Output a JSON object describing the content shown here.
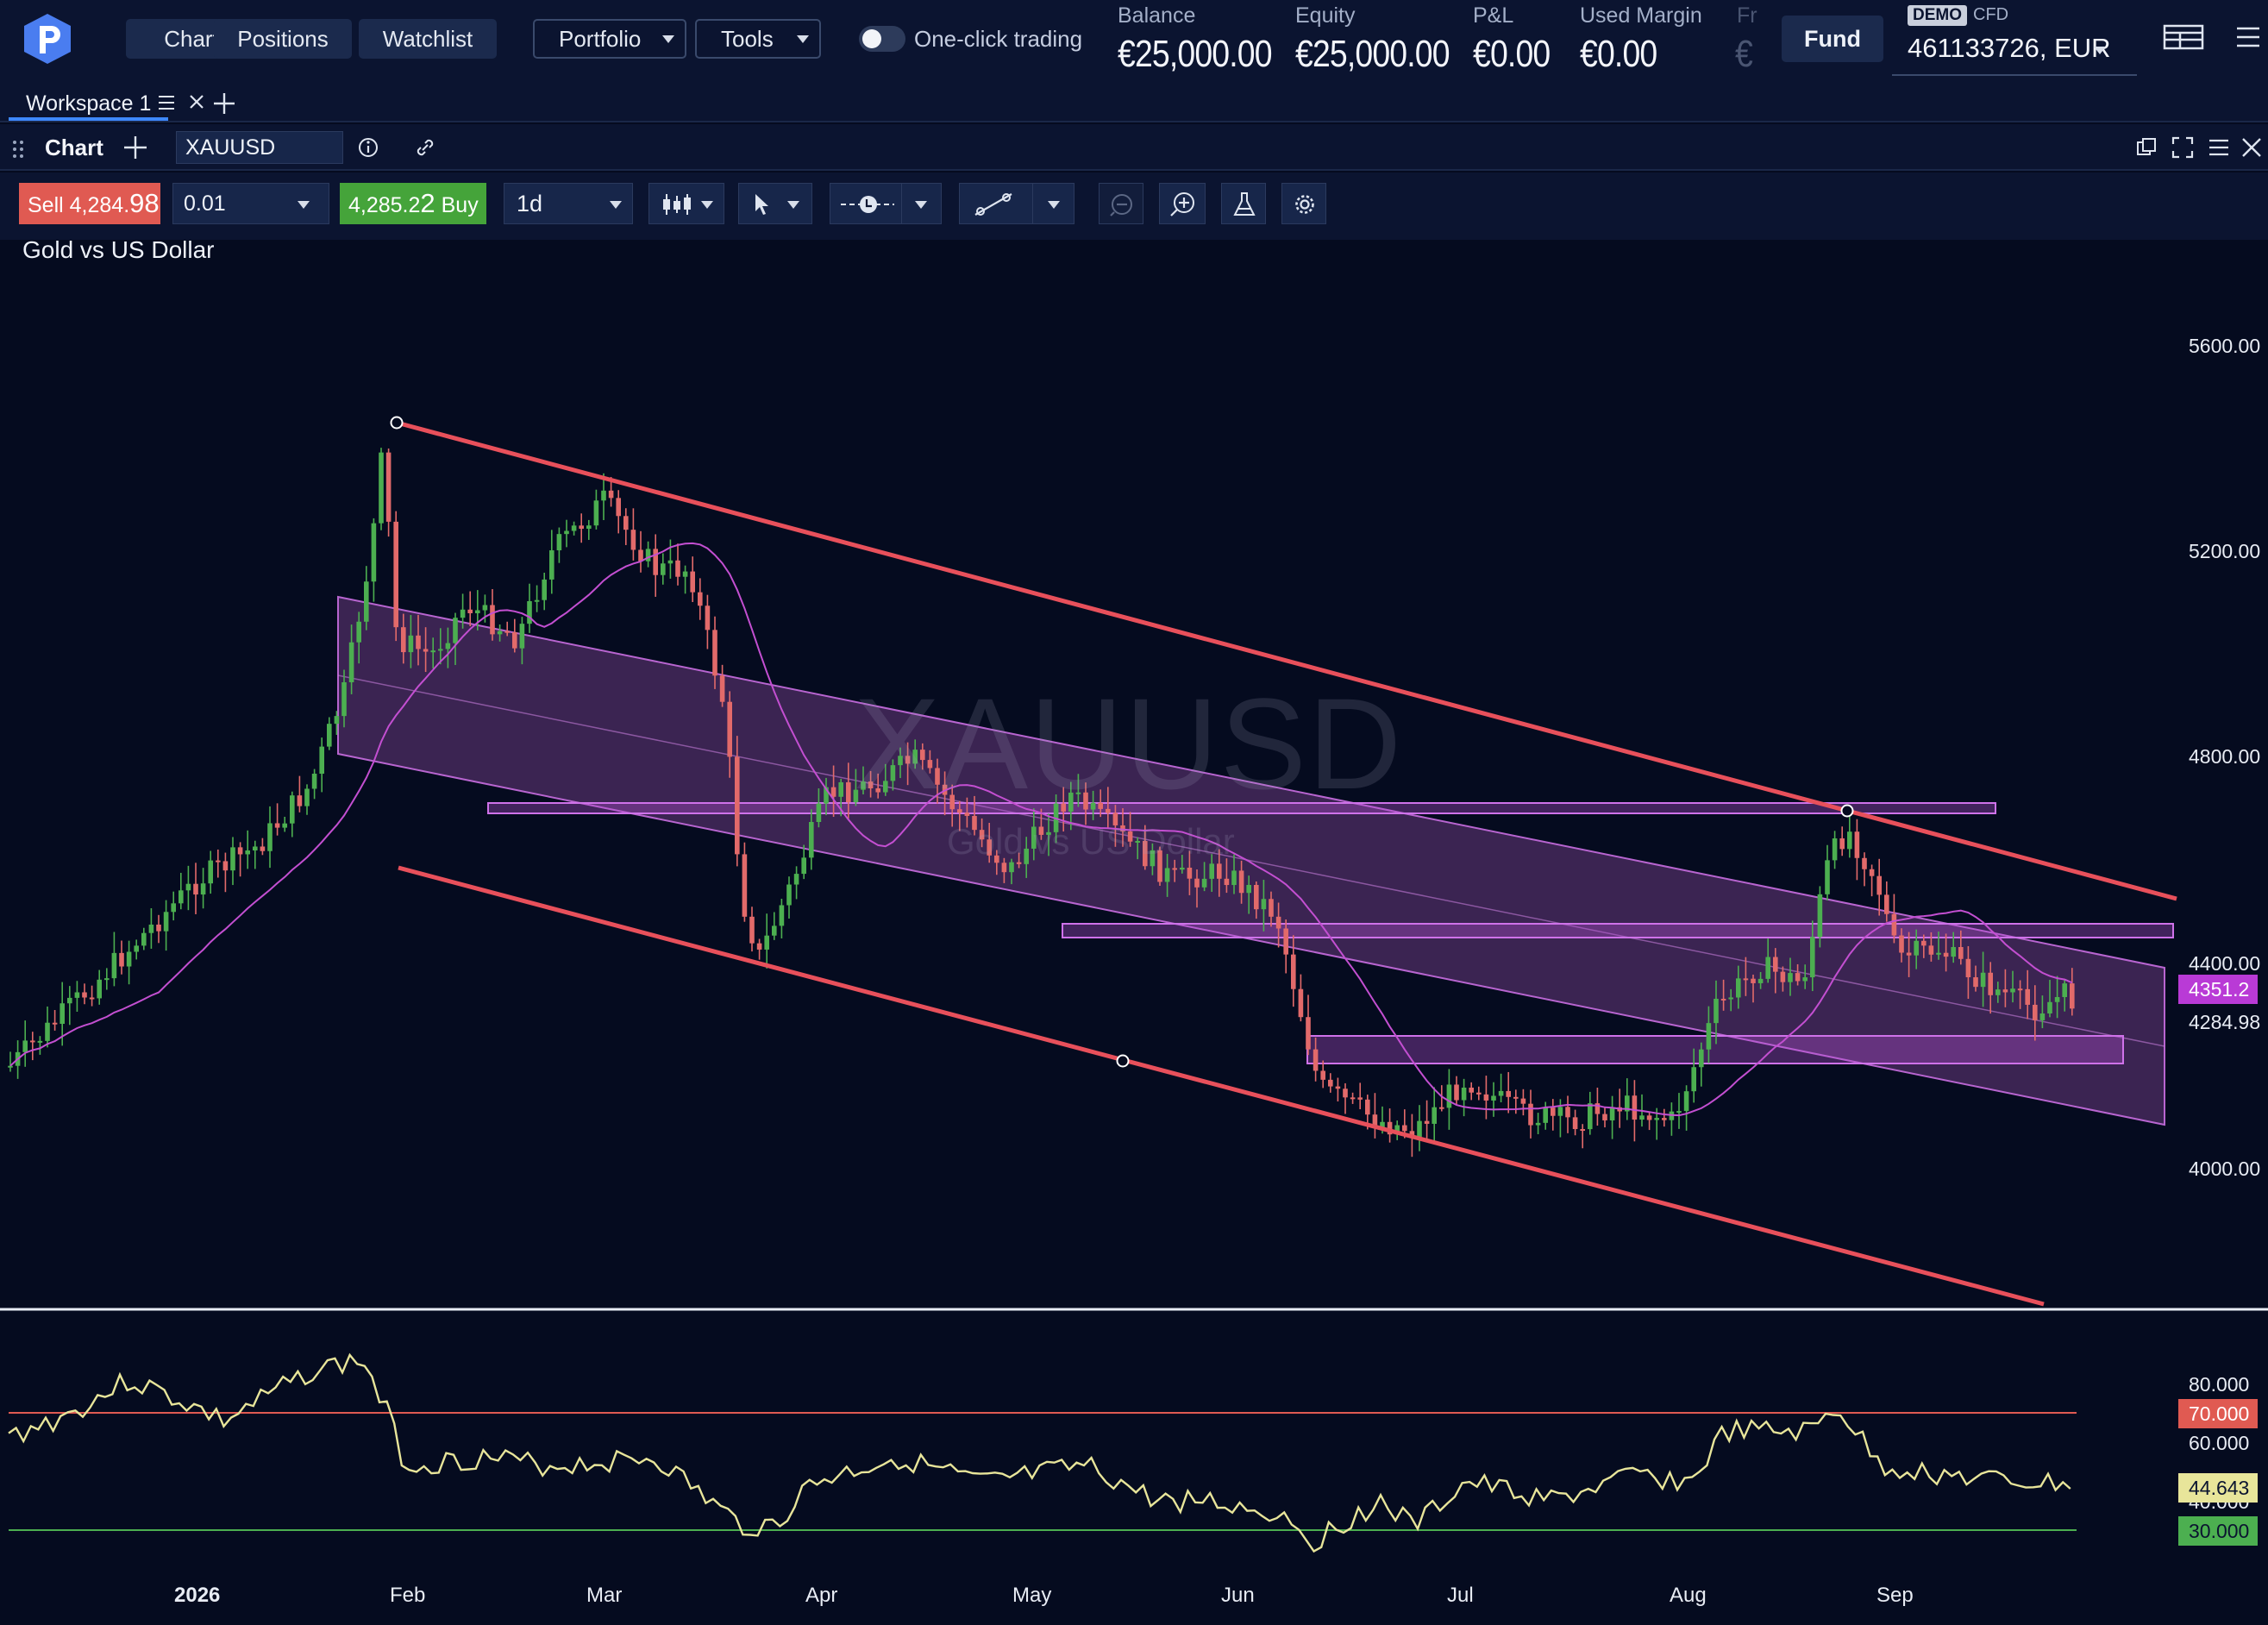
{
  "topbar": {
    "nav": [
      "Chart",
      "Positions",
      "Watchlist"
    ],
    "dropdowns": [
      "Portfolio",
      "Tools"
    ],
    "one_click_label": "One-click trading",
    "stats": [
      {
        "label": "Balance",
        "value": "€25,000.00"
      },
      {
        "label": "Equity",
        "value": "€25,000.00"
      },
      {
        "label": "P&L",
        "value": "€0.00"
      },
      {
        "label": "Used Margin",
        "value": "€0.00"
      },
      {
        "label": "Fr",
        "value": "€"
      }
    ],
    "fund_label": "Fund",
    "demo_badge": "DEMO",
    "cfd_label": "CFD",
    "account": "461133726, EUR"
  },
  "workspace": {
    "tab_label": "Workspace 1"
  },
  "panel": {
    "title": "Chart",
    "symbol": "XAUUSD"
  },
  "toolbar": {
    "sell_prefix": "Sell 4,284.",
    "sell_big": "98",
    "quantity": "0.01",
    "buy_prefix": "4,285.2",
    "buy_big": "2",
    "buy_suffix": " Buy",
    "timeframe": "1d"
  },
  "chart": {
    "title": "Gold vs US Dollar",
    "watermark": "XAUUSD",
    "watermark_sub": "Gold vs US Dollar",
    "price_ticks": [
      "5600.00",
      "5200.00",
      "4800.00",
      "4400.00",
      "4284.98",
      "4000.00"
    ],
    "ma_badge": "4351.2",
    "rsi_ticks": [
      "80.000",
      "60.000",
      "40.000"
    ],
    "rsi_badges": {
      "upper": "70.000",
      "current": "44.643",
      "lower": "30.000"
    },
    "x_ticks": [
      "2026",
      "Feb",
      "Mar",
      "Apr",
      "May",
      "Jun",
      "Jul",
      "Aug",
      "Sep"
    ],
    "colors": {
      "background": "#050b1f",
      "up": "#4caf50",
      "down": "#e26a6a",
      "channel_line": "#e8505b",
      "regression_fill": "#9a4fb0",
      "ma": "#c34fd1",
      "rsi": "#e8e59a",
      "rsi_upper": "#e05a52",
      "rsi_lower": "#4caf50"
    }
  }
}
